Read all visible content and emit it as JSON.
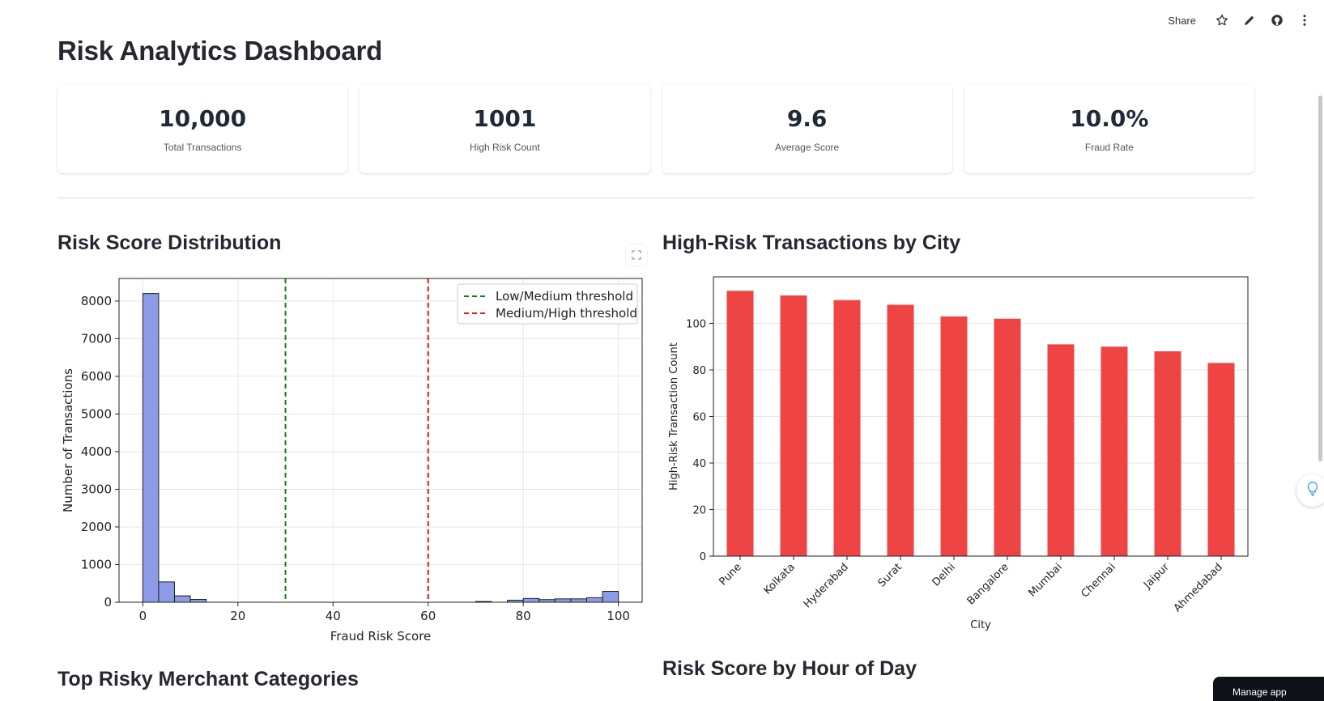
{
  "header": {
    "share_label": "Share",
    "icons": [
      "star-icon",
      "pencil-icon",
      "github-icon",
      "more-vert-icon"
    ]
  },
  "page": {
    "title": "Risk Analytics Dashboard"
  },
  "kpis": [
    {
      "value": "10,000",
      "label": "Total Transactions"
    },
    {
      "value": "1001",
      "label": "High Risk Count"
    },
    {
      "value": "9.6",
      "label": "Average Score"
    },
    {
      "value": "10.0%",
      "label": "Fraud Rate"
    }
  ],
  "sections": {
    "risk_dist_title": "Risk Score Distribution",
    "city_title": "High-Risk Transactions by City",
    "merchant_title": "Top Risky Merchant Categories",
    "hour_title": "Risk Score by Hour of Day"
  },
  "footer": {
    "manage_app_label": "Manage app"
  },
  "colors": {
    "hist_fill": "#8b9be8",
    "hist_edge": "#1f1f1f",
    "bar_fill": "#ef4444",
    "green_line": "#108010",
    "red_line": "#ee1111",
    "grid": "#e6e6e6"
  },
  "chart_data": [
    {
      "type": "bar",
      "subtype": "histogram",
      "xlabel": "Fraud Risk Score",
      "ylabel": "Number of Transactions",
      "xlim": [
        -5,
        105
      ],
      "ylim": [
        0,
        8600
      ],
      "xticks": [
        0,
        20,
        40,
        60,
        80,
        100
      ],
      "yticks": [
        0,
        1000,
        2000,
        3000,
        4000,
        5000,
        6000,
        7000,
        8000
      ],
      "bin_width": 3.33,
      "bins": [
        {
          "x": 0,
          "value": 8200
        },
        {
          "x": 3.33,
          "value": 540
        },
        {
          "x": 6.67,
          "value": 170
        },
        {
          "x": 10,
          "value": 75
        },
        {
          "x": 70,
          "value": 20
        },
        {
          "x": 76.67,
          "value": 55
        },
        {
          "x": 80,
          "value": 100
        },
        {
          "x": 83.33,
          "value": 70
        },
        {
          "x": 86.67,
          "value": 90
        },
        {
          "x": 90,
          "value": 90
        },
        {
          "x": 93.33,
          "value": 120
        },
        {
          "x": 96.67,
          "value": 290
        }
      ],
      "vlines": [
        {
          "x": 30,
          "label": "Low/Medium threshold",
          "color": "#108010"
        },
        {
          "x": 60,
          "label": "Medium/High threshold",
          "color": "#ee1111"
        }
      ],
      "legend": "top-right",
      "grid": true
    },
    {
      "type": "bar",
      "categories": [
        "Pune",
        "Kolkata",
        "Hyderabad",
        "Surat",
        "Delhi",
        "Bangalore",
        "Mumbai",
        "Chennai",
        "Jaipur",
        "Ahmedabad"
      ],
      "values": [
        114,
        112,
        110,
        108,
        103,
        102,
        91,
        90,
        88,
        83
      ],
      "xlabel": "City",
      "ylabel": "High-Risk Transaction Count",
      "ylim": [
        0,
        120
      ],
      "yticks": [
        0,
        20,
        40,
        60,
        80,
        100
      ],
      "grid": true
    }
  ]
}
